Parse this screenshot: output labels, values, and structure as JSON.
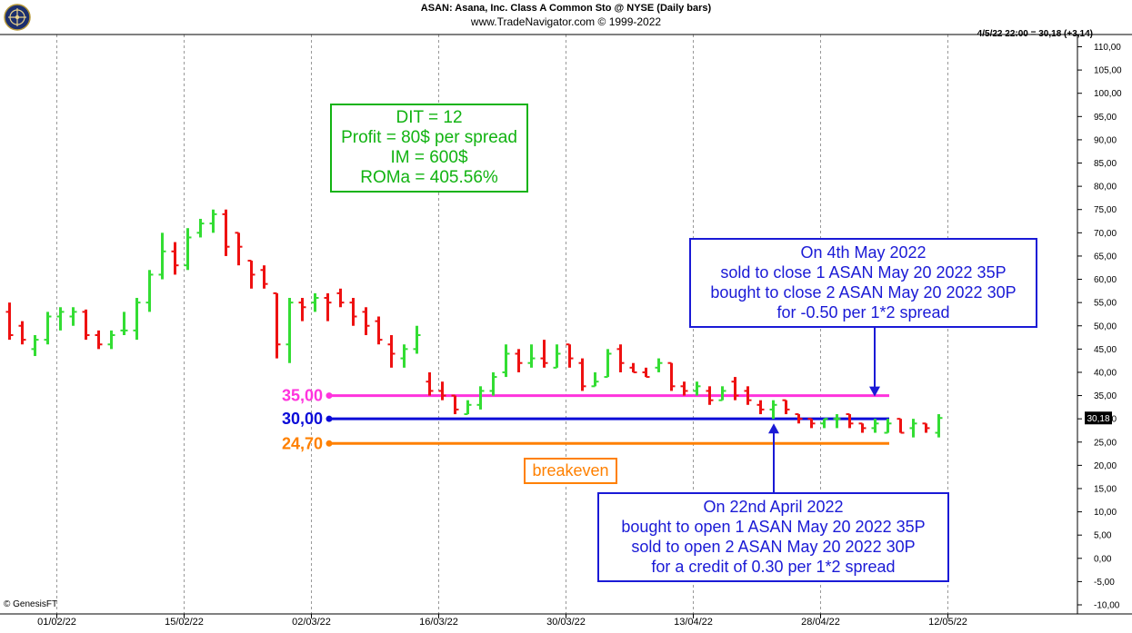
{
  "header": {
    "title": "ASAN:  Asana, Inc. Class A Common Sto @ NYSE  (Daily bars)",
    "subtitle": "www.TradeNavigator.com © 1999-2022",
    "last_info": "4/5/22 22:00 = 30,18 (+3,14)",
    "credit": "© GenesisFT"
  },
  "colors": {
    "up": "#33dd33",
    "down": "#ee1111",
    "grid": "#999999",
    "strike_35": "#ff33dd",
    "strike_30": "#0b0bd8",
    "breakeven": "#ff8000",
    "annotation_blue": "#1a1ad6",
    "annotation_green": "#12b312"
  },
  "chart_data": {
    "type": "ohlc",
    "y_axis": {
      "min": -10,
      "max": 110,
      "tick_step": 5,
      "ticks": [
        "110,00",
        "105,00",
        "100,00",
        "95,00",
        "90,00",
        "85,00",
        "80,00",
        "75,00",
        "70,00",
        "65,00",
        "60,00",
        "55,00",
        "50,00",
        "45,00",
        "40,00",
        "35,00",
        "30,00",
        "25,00",
        "20,00",
        "15,00",
        "10,00",
        "5,00",
        "0,00",
        "-5,00",
        "-10,00"
      ],
      "last_price_label": "30,18",
      "last_price": 30.18
    },
    "x_axis": {
      "tick_labels": [
        {
          "label": "01/02/22",
          "bar": 4
        },
        {
          "label": "15/02/22",
          "bar": 14
        },
        {
          "label": "02/03/22",
          "bar": 24
        },
        {
          "label": "16/03/22",
          "bar": 34
        },
        {
          "label": "30/03/22",
          "bar": 44
        },
        {
          "label": "13/04/22",
          "bar": 54
        },
        {
          "label": "28/04/22",
          "bar": 64
        },
        {
          "label": "12/05/22",
          "bar": 74
        }
      ]
    },
    "bars": [
      {
        "o": 53,
        "h": 55,
        "l": 47,
        "c": 48
      },
      {
        "o": 50,
        "h": 51,
        "l": 46,
        "c": 47
      },
      {
        "o": 45,
        "h": 48,
        "l": 43.5,
        "c": 47
      },
      {
        "o": 47,
        "h": 53,
        "l": 46,
        "c": 52
      },
      {
        "o": 52,
        "h": 54,
        "l": 49,
        "c": 53
      },
      {
        "o": 52,
        "h": 54,
        "l": 50,
        "c": 53
      },
      {
        "o": 53,
        "h": 53.5,
        "l": 47,
        "c": 48
      },
      {
        "o": 48,
        "h": 49,
        "l": 45,
        "c": 46
      },
      {
        "o": 46,
        "h": 49,
        "l": 45,
        "c": 48
      },
      {
        "o": 49,
        "h": 53,
        "l": 48,
        "c": 49
      },
      {
        "o": 49,
        "h": 56,
        "l": 47,
        "c": 55
      },
      {
        "o": 55,
        "h": 62,
        "l": 53,
        "c": 61
      },
      {
        "o": 61,
        "h": 70,
        "l": 60,
        "c": 66
      },
      {
        "o": 66,
        "h": 68,
        "l": 61,
        "c": 63
      },
      {
        "o": 63,
        "h": 71,
        "l": 62,
        "c": 69
      },
      {
        "o": 70,
        "h": 73,
        "l": 69,
        "c": 72
      },
      {
        "o": 72,
        "h": 75,
        "l": 70,
        "c": 74
      },
      {
        "o": 74,
        "h": 75,
        "l": 65,
        "c": 67
      },
      {
        "o": 70,
        "h": 70,
        "l": 63,
        "c": 67
      },
      {
        "o": 64,
        "h": 64,
        "l": 58,
        "c": 61
      },
      {
        "o": 62,
        "h": 63,
        "l": 58,
        "c": 59
      },
      {
        "o": 57,
        "h": 57,
        "l": 43,
        "c": 46
      },
      {
        "o": 46,
        "h": 56,
        "l": 42,
        "c": 55
      },
      {
        "o": 55,
        "h": 56,
        "l": 51,
        "c": 54
      },
      {
        "o": 55,
        "h": 57,
        "l": 53,
        "c": 56
      },
      {
        "o": 56,
        "h": 57,
        "l": 51,
        "c": 55
      },
      {
        "o": 57,
        "h": 58,
        "l": 54,
        "c": 55
      },
      {
        "o": 55,
        "h": 56,
        "l": 50,
        "c": 52
      },
      {
        "o": 53,
        "h": 54,
        "l": 48,
        "c": 50
      },
      {
        "o": 51,
        "h": 52,
        "l": 46,
        "c": 47
      },
      {
        "o": 46,
        "h": 48,
        "l": 41,
        "c": 44
      },
      {
        "o": 43,
        "h": 46,
        "l": 41,
        "c": 45
      },
      {
        "o": 45,
        "h": 50,
        "l": 44,
        "c": 48
      },
      {
        "o": 38,
        "h": 40,
        "l": 35,
        "c": 36
      },
      {
        "o": 36,
        "h": 38,
        "l": 34,
        "c": 35
      },
      {
        "o": 35,
        "h": 35,
        "l": 31,
        "c": 32
      },
      {
        "o": 31,
        "h": 34,
        "l": 31,
        "c": 33
      },
      {
        "o": 33,
        "h": 37,
        "l": 32,
        "c": 36
      },
      {
        "o": 36,
        "h": 40,
        "l": 35,
        "c": 39
      },
      {
        "o": 40,
        "h": 46,
        "l": 39,
        "c": 44
      },
      {
        "o": 44,
        "h": 45,
        "l": 40,
        "c": 42
      },
      {
        "o": 42,
        "h": 46,
        "l": 41,
        "c": 43
      },
      {
        "o": 43,
        "h": 47,
        "l": 41,
        "c": 42
      },
      {
        "o": 41,
        "h": 46,
        "l": 41,
        "c": 44
      },
      {
        "o": 46,
        "h": 46,
        "l": 41,
        "c": 43
      },
      {
        "o": 42,
        "h": 43,
        "l": 36,
        "c": 37
      },
      {
        "o": 37,
        "h": 40,
        "l": 37,
        "c": 38
      },
      {
        "o": 39,
        "h": 45,
        "l": 39,
        "c": 44
      },
      {
        "o": 45,
        "h": 46,
        "l": 40,
        "c": 42
      },
      {
        "o": 41,
        "h": 42,
        "l": 40,
        "c": 40
      },
      {
        "o": 40,
        "h": 41,
        "l": 39,
        "c": 39
      },
      {
        "o": 41,
        "h": 43,
        "l": 40,
        "c": 42
      },
      {
        "o": 42,
        "h": 42,
        "l": 36,
        "c": 37
      },
      {
        "o": 37,
        "h": 38,
        "l": 35,
        "c": 36
      },
      {
        "o": 36,
        "h": 38,
        "l": 35,
        "c": 37
      },
      {
        "o": 36,
        "h": 37,
        "l": 33,
        "c": 34
      },
      {
        "o": 34,
        "h": 37,
        "l": 34,
        "c": 36
      },
      {
        "o": 38,
        "h": 39,
        "l": 34,
        "c": 35
      },
      {
        "o": 36,
        "h": 37,
        "l": 33,
        "c": 34
      },
      {
        "o": 33,
        "h": 34,
        "l": 31,
        "c": 32
      },
      {
        "o": 32,
        "h": 34,
        "l": 30,
        "c": 33
      },
      {
        "o": 34,
        "h": 34,
        "l": 31,
        "c": 32
      },
      {
        "o": 31,
        "h": 31,
        "l": 29,
        "c": 30
      },
      {
        "o": 30,
        "h": 30,
        "l": 28,
        "c": 29
      },
      {
        "o": 29,
        "h": 30,
        "l": 28,
        "c": 30
      },
      {
        "o": 30,
        "h": 31,
        "l": 28,
        "c": 30
      },
      {
        "o": 31,
        "h": 31,
        "l": 28,
        "c": 29
      },
      {
        "o": 29,
        "h": 29,
        "l": 27,
        "c": 28
      },
      {
        "o": 28,
        "h": 30,
        "l": 27,
        "c": 29
      },
      {
        "o": 27,
        "h": 30,
        "l": 27,
        "c": 29
      },
      {
        "o": 30,
        "h": 30,
        "l": 27,
        "c": 27
      },
      {
        "o": 28,
        "h": 30,
        "l": 26,
        "c": 29
      },
      {
        "o": 29,
        "h": 29,
        "l": 27,
        "c": 28
      },
      {
        "o": 27,
        "h": 31,
        "l": 26,
        "c": 30.18
      }
    ],
    "levels": [
      {
        "name": "35,00",
        "value": 35
      },
      {
        "name": "30,00",
        "value": 30
      },
      {
        "name": "24,70",
        "value": 24.7
      }
    ]
  },
  "annotations": {
    "stats": [
      "DIT = 12",
      "Profit = 80$ per spread",
      "IM = 600$",
      "ROMa = 405.56%"
    ],
    "close_trade": [
      "On 4th May 2022",
      "sold to close 1 ASAN May 20 2022 35P",
      "bought to close 2 ASAN May 20 2022 30P",
      "for -0.50  per 1*2 spread"
    ],
    "open_trade": [
      "On 22nd April 2022",
      "bought to open 1 ASAN May 20 2022 35P",
      "sold to open 2 ASAN May 20 2022 30P",
      "for a credit of 0.30 per 1*2 spread"
    ],
    "breakeven": "breakeven"
  }
}
